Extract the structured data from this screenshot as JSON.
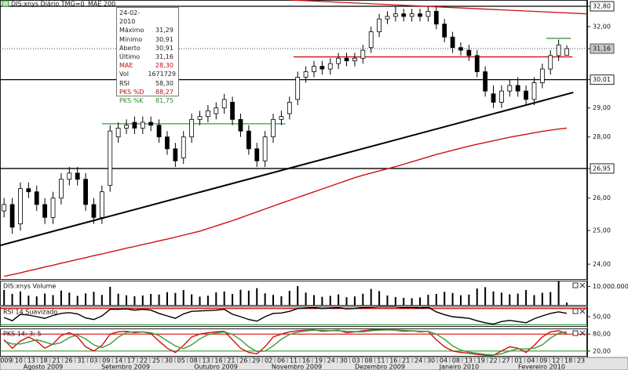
{
  "legend_title": "DIS:xnys Diário TMG=0",
  "info_box": [
    {
      "label": "24-02-2010"
    },
    {
      "label": "Máximo",
      "value": "31,29"
    },
    {
      "label": "Mínimo",
      "value": "30,91"
    },
    {
      "label": "Aberto",
      "value": "30,91"
    },
    {
      "label": "Último",
      "value": "31,16"
    },
    {
      "label": "MAE",
      "value": "28,30"
    },
    {
      "label": "Vol",
      "value": "1671729"
    },
    {
      "label": "RSI",
      "value": "58,30"
    },
    {
      "label": "PKS %D",
      "value": "88,27"
    },
    {
      "label": "PKS %K",
      "value": "81,75"
    }
  ],
  "x_axis": {
    "days": [
      "009",
      "10",
      "13",
      "18",
      "21",
      "26",
      "31",
      "03",
      "09",
      "14",
      "17",
      "22",
      "25",
      "30",
      "05",
      "08",
      "13",
      "16",
      "21",
      "26",
      "29",
      "02",
      "06",
      "11",
      "16",
      "19",
      "24",
      "30",
      "03",
      "08",
      "11",
      "16",
      "21",
      "24",
      "30",
      "04",
      "08",
      "13",
      "19",
      "22",
      "27",
      "01",
      "04",
      "09",
      "12",
      "18",
      "23"
    ],
    "months": [
      "Agosto 2009",
      "Setembro 2009",
      "Outubro 2009",
      "Novembro 2009",
      "Dezembro 2009",
      "Janeiro 2010",
      "Fevereiro 2010"
    ]
  },
  "chart_data": [
    {
      "type": "candlestick",
      "log_scale": true,
      "ylim": [
        23.55,
        33.05
      ],
      "xlim": [
        -0.5,
        71.5
      ],
      "yticks": [
        {
          "value": 32.8,
          "label": "32,80"
        },
        {
          "value": 32,
          "label": "32,00"
        },
        {
          "value": 31.16,
          "label": "31,16"
        },
        {
          "value": 30.01,
          "label": "30,01"
        },
        {
          "value": 29,
          "label": "29,00"
        },
        {
          "value": 28,
          "label": "28,00"
        },
        {
          "value": 26.95,
          "label": "26,95"
        },
        {
          "value": 26,
          "label": "26,00"
        },
        {
          "value": 25,
          "label": "25,00"
        },
        {
          "value": 24,
          "label": "24,00"
        }
      ],
      "open": [
        25.6,
        25.8,
        25.2,
        26.3,
        26.2,
        25.8,
        25.4,
        26.0,
        26.6,
        26.8,
        26.6,
        25.8,
        25.4,
        26.4,
        28.0,
        28.3,
        28.5,
        28.3,
        28.5,
        28.4,
        28.0,
        27.6,
        27.3,
        28.0,
        28.6,
        28.7,
        28.8,
        29.0,
        29.2,
        28.6,
        28.2,
        27.6,
        27.2,
        28.0,
        28.6,
        28.8,
        29.3,
        30.1,
        30.3,
        30.5,
        30.4,
        30.6,
        30.8,
        30.7,
        30.8,
        31.2,
        31.8,
        32.3,
        32.4,
        32.5,
        32.4,
        32.5,
        32.4,
        32.6,
        32.1,
        31.6,
        31.2,
        31.1,
        30.9,
        30.3,
        29.5,
        29.2,
        29.6,
        29.8,
        29.6,
        29.3,
        29.9,
        30.4,
        30.9,
        30.91
      ],
      "high": [
        26.0,
        26.0,
        26.5,
        26.5,
        26.4,
        26.0,
        26.2,
        26.8,
        27.0,
        27.0,
        26.8,
        26.0,
        26.4,
        28.4,
        28.5,
        28.6,
        28.7,
        28.7,
        28.7,
        28.6,
        28.2,
        27.8,
        28.2,
        28.8,
        28.9,
        29.1,
        29.2,
        29.5,
        29.4,
        28.8,
        28.4,
        27.8,
        28.2,
        28.8,
        28.9,
        29.4,
        30.3,
        30.5,
        30.7,
        30.7,
        30.8,
        31.0,
        31.0,
        31.0,
        31.3,
        32.0,
        32.5,
        32.6,
        32.8,
        32.7,
        32.7,
        32.7,
        32.8,
        32.8,
        32.3,
        31.8,
        31.4,
        31.3,
        31.1,
        30.5,
        29.8,
        29.8,
        30.0,
        30.1,
        29.8,
        30.1,
        30.6,
        31.1,
        31.5,
        31.29
      ],
      "low": [
        25.4,
        24.9,
        25.0,
        26.0,
        25.6,
        25.2,
        25.2,
        25.8,
        26.4,
        26.4,
        25.6,
        25.2,
        25.2,
        26.2,
        27.8,
        28.1,
        28.1,
        28.1,
        28.2,
        27.8,
        27.4,
        27.0,
        27.1,
        27.8,
        28.4,
        28.5,
        28.6,
        28.8,
        28.4,
        28.0,
        27.4,
        27.0,
        27.0,
        27.8,
        28.4,
        28.6,
        29.1,
        29.9,
        30.1,
        30.2,
        30.2,
        30.4,
        30.5,
        30.5,
        30.6,
        31.0,
        31.6,
        32.1,
        32.2,
        32.2,
        32.2,
        32.2,
        32.2,
        31.9,
        31.4,
        31.0,
        30.9,
        30.7,
        30.1,
        29.4,
        29.0,
        29.0,
        29.4,
        29.4,
        29.1,
        29.1,
        29.7,
        30.2,
        30.7,
        30.91
      ],
      "close": [
        25.8,
        25.1,
        26.3,
        26.2,
        25.8,
        25.4,
        26.0,
        26.6,
        26.8,
        26.6,
        25.8,
        25.4,
        26.2,
        28.2,
        28.3,
        28.4,
        28.3,
        28.5,
        28.4,
        28.0,
        27.6,
        27.2,
        28.0,
        28.6,
        28.7,
        28.9,
        29.0,
        29.3,
        28.6,
        28.2,
        27.6,
        27.2,
        28.0,
        28.6,
        28.7,
        29.2,
        30.1,
        30.3,
        30.5,
        30.4,
        30.6,
        30.8,
        30.7,
        30.8,
        31.1,
        31.8,
        32.3,
        32.4,
        32.5,
        32.4,
        32.5,
        32.4,
        32.6,
        32.1,
        31.6,
        31.2,
        31.1,
        30.9,
        30.3,
        29.6,
        29.2,
        29.6,
        29.8,
        29.6,
        29.3,
        29.9,
        30.4,
        30.9,
        31.3,
        31.16
      ],
      "overlays": [
        {
          "name": "MAE 200",
          "color": "#d01010",
          "values": [
            23.65,
            23.7,
            23.75,
            23.81,
            23.86,
            23.92,
            23.97,
            24.03,
            24.08,
            24.14,
            24.19,
            24.25,
            24.3,
            24.36,
            24.41,
            24.47,
            24.52,
            24.58,
            24.63,
            24.69,
            24.74,
            24.8,
            24.86,
            24.92,
            24.98,
            25.06,
            25.14,
            25.22,
            25.3,
            25.39,
            25.48,
            25.57,
            25.66,
            25.75,
            25.84,
            25.93,
            26.02,
            26.11,
            26.2,
            26.29,
            26.38,
            26.47,
            26.56,
            26.65,
            26.73,
            26.8,
            26.87,
            26.94,
            27.01,
            27.09,
            27.17,
            27.25,
            27.33,
            27.41,
            27.48,
            27.55,
            27.62,
            27.69,
            27.75,
            27.81,
            27.87,
            27.93,
            27.99,
            28.04,
            28.09,
            28.14,
            28.19,
            28.23,
            28.27,
            28.3
          ]
        }
      ],
      "hlines": [
        {
          "color": "#000000",
          "x": [
            -0.5,
            71.5
          ],
          "values": [
            32.8,
            32.8
          ]
        },
        {
          "color": "#000000",
          "x": [
            -0.5,
            71.5
          ],
          "values": [
            30.01,
            30.01
          ]
        },
        {
          "color": "#000000",
          "x": [
            -0.5,
            71.5
          ],
          "values": [
            26.95,
            26.95
          ]
        }
      ],
      "trend_lines": [
        {
          "color": "#000000",
          "x": [
            -0.5,
            69.8
          ],
          "values": [
            24.55,
            29.55
          ]
        },
        {
          "color": "#d01010",
          "x": [
            35.1,
            71.5
          ],
          "values": [
            33.05,
            32.5
          ]
        },
        {
          "color": "#d01010",
          "x": [
            35.5,
            69.7
          ],
          "values": [
            30.85,
            30.85
          ]
        },
        {
          "color": "#3a9a3a",
          "x": [
            12,
            34.5
          ],
          "values": [
            28.45,
            28.45
          ]
        },
        {
          "color": "#3a9a3a",
          "x": [
            66.5,
            69.5
          ],
          "values": [
            31.55,
            31.55
          ]
        }
      ]
    },
    {
      "type": "bar",
      "title": "DIS:xnys Volume",
      "color": "#000000",
      "ylim": [
        0,
        13000000
      ],
      "yticks": [
        {
          "value": 10000000,
          "label": "10.000.000"
        }
      ],
      "values": [
        8200000,
        6100000,
        7400000,
        5200000,
        4800000,
        6300000,
        5500000,
        7900000,
        6800000,
        5100000,
        6400000,
        7200000,
        5600000,
        9800000,
        6200000,
        5400000,
        4900000,
        5300000,
        6100000,
        5800000,
        7000000,
        6600000,
        8100000,
        5900000,
        4700000,
        5200000,
        6900000,
        7400000,
        6100000,
        8300000,
        7800000,
        9100000,
        6400000,
        5600000,
        4900000,
        7700000,
        10200000,
        6800000,
        5500000,
        4600000,
        5100000,
        5900000,
        4400000,
        4800000,
        6200000,
        8700000,
        7600000,
        5300000,
        4500000,
        4100000,
        3900000,
        4300000,
        5700000,
        6100000,
        7200000,
        6600000,
        5400000,
        5800000,
        8900000,
        9600000,
        7400000,
        6800000,
        5900000,
        6300000,
        8100000,
        5500000,
        6700000,
        7100000,
        12800000,
        1671729
      ]
    },
    {
      "type": "line",
      "title": "RSI 14 Suavizado",
      "color": "#000000",
      "ylim": [
        25,
        75
      ],
      "yticks": [
        {
          "value": 50,
          "label": "50,00"
        }
      ],
      "levels": [
        {
          "value": 70,
          "color": "#d01010"
        },
        {
          "value": 30,
          "color": "#3a9a3a"
        }
      ],
      "values": [
        48,
        40,
        56,
        54,
        50,
        46,
        53,
        58,
        60,
        57,
        47,
        43,
        52,
        68,
        68,
        69,
        66,
        68,
        66,
        58,
        52,
        46,
        57,
        63,
        64,
        65,
        66,
        68,
        56,
        50,
        43,
        39,
        50,
        58,
        59,
        63,
        70,
        71,
        72,
        70,
        71,
        72,
        69,
        70,
        72,
        73,
        74,
        74,
        74,
        72,
        73,
        71,
        73,
        62,
        55,
        50,
        48,
        46,
        40,
        35,
        32,
        38,
        41,
        38,
        35,
        45,
        52,
        58,
        62,
        58.3
      ]
    },
    {
      "type": "line",
      "title": "PKS 14; 3; 5",
      "ylim": [
        0,
        100
      ],
      "yticks": [
        {
          "value": 80,
          "label": "80,00"
        },
        {
          "value": 20,
          "label": "20,00"
        }
      ],
      "levels": [
        {
          "value": 80,
          "color": "#d01010"
        },
        {
          "value": 20,
          "color": "#3a9a3a"
        }
      ],
      "series": [
        {
          "color": "#d01010",
          "values": [
            60,
            30,
            55,
            70,
            55,
            30,
            45,
            75,
            85,
            70,
            35,
            20,
            40,
            80,
            88,
            90,
            85,
            88,
            82,
            55,
            30,
            15,
            40,
            70,
            80,
            85,
            88,
            90,
            60,
            30,
            15,
            10,
            35,
            70,
            80,
            88,
            92,
            94,
            95,
            90,
            92,
            94,
            85,
            88,
            92,
            95,
            96,
            95,
            94,
            90,
            92,
            88,
            90,
            60,
            35,
            20,
            15,
            12,
            8,
            5,
            5,
            20,
            35,
            30,
            15,
            40,
            70,
            88,
            92,
            81.75
          ]
        },
        {
          "color": "#3a9a3a",
          "values": [
            55,
            45,
            45,
            52,
            60,
            52,
            43,
            50,
            68,
            77,
            63,
            42,
            32,
            45,
            69,
            86,
            88,
            88,
            85,
            75,
            56,
            38,
            28,
            42,
            63,
            78,
            84,
            88,
            79,
            60,
            35,
            18,
            20,
            38,
            62,
            79,
            87,
            91,
            94,
            93,
            92,
            92,
            90,
            89,
            88,
            92,
            94,
            95,
            95,
            93,
            92,
            90,
            90,
            80,
            62,
            38,
            23,
            16,
            12,
            8,
            6,
            10,
            20,
            28,
            27,
            30,
            42,
            66,
            83,
            88.27
          ]
        }
      ]
    }
  ]
}
